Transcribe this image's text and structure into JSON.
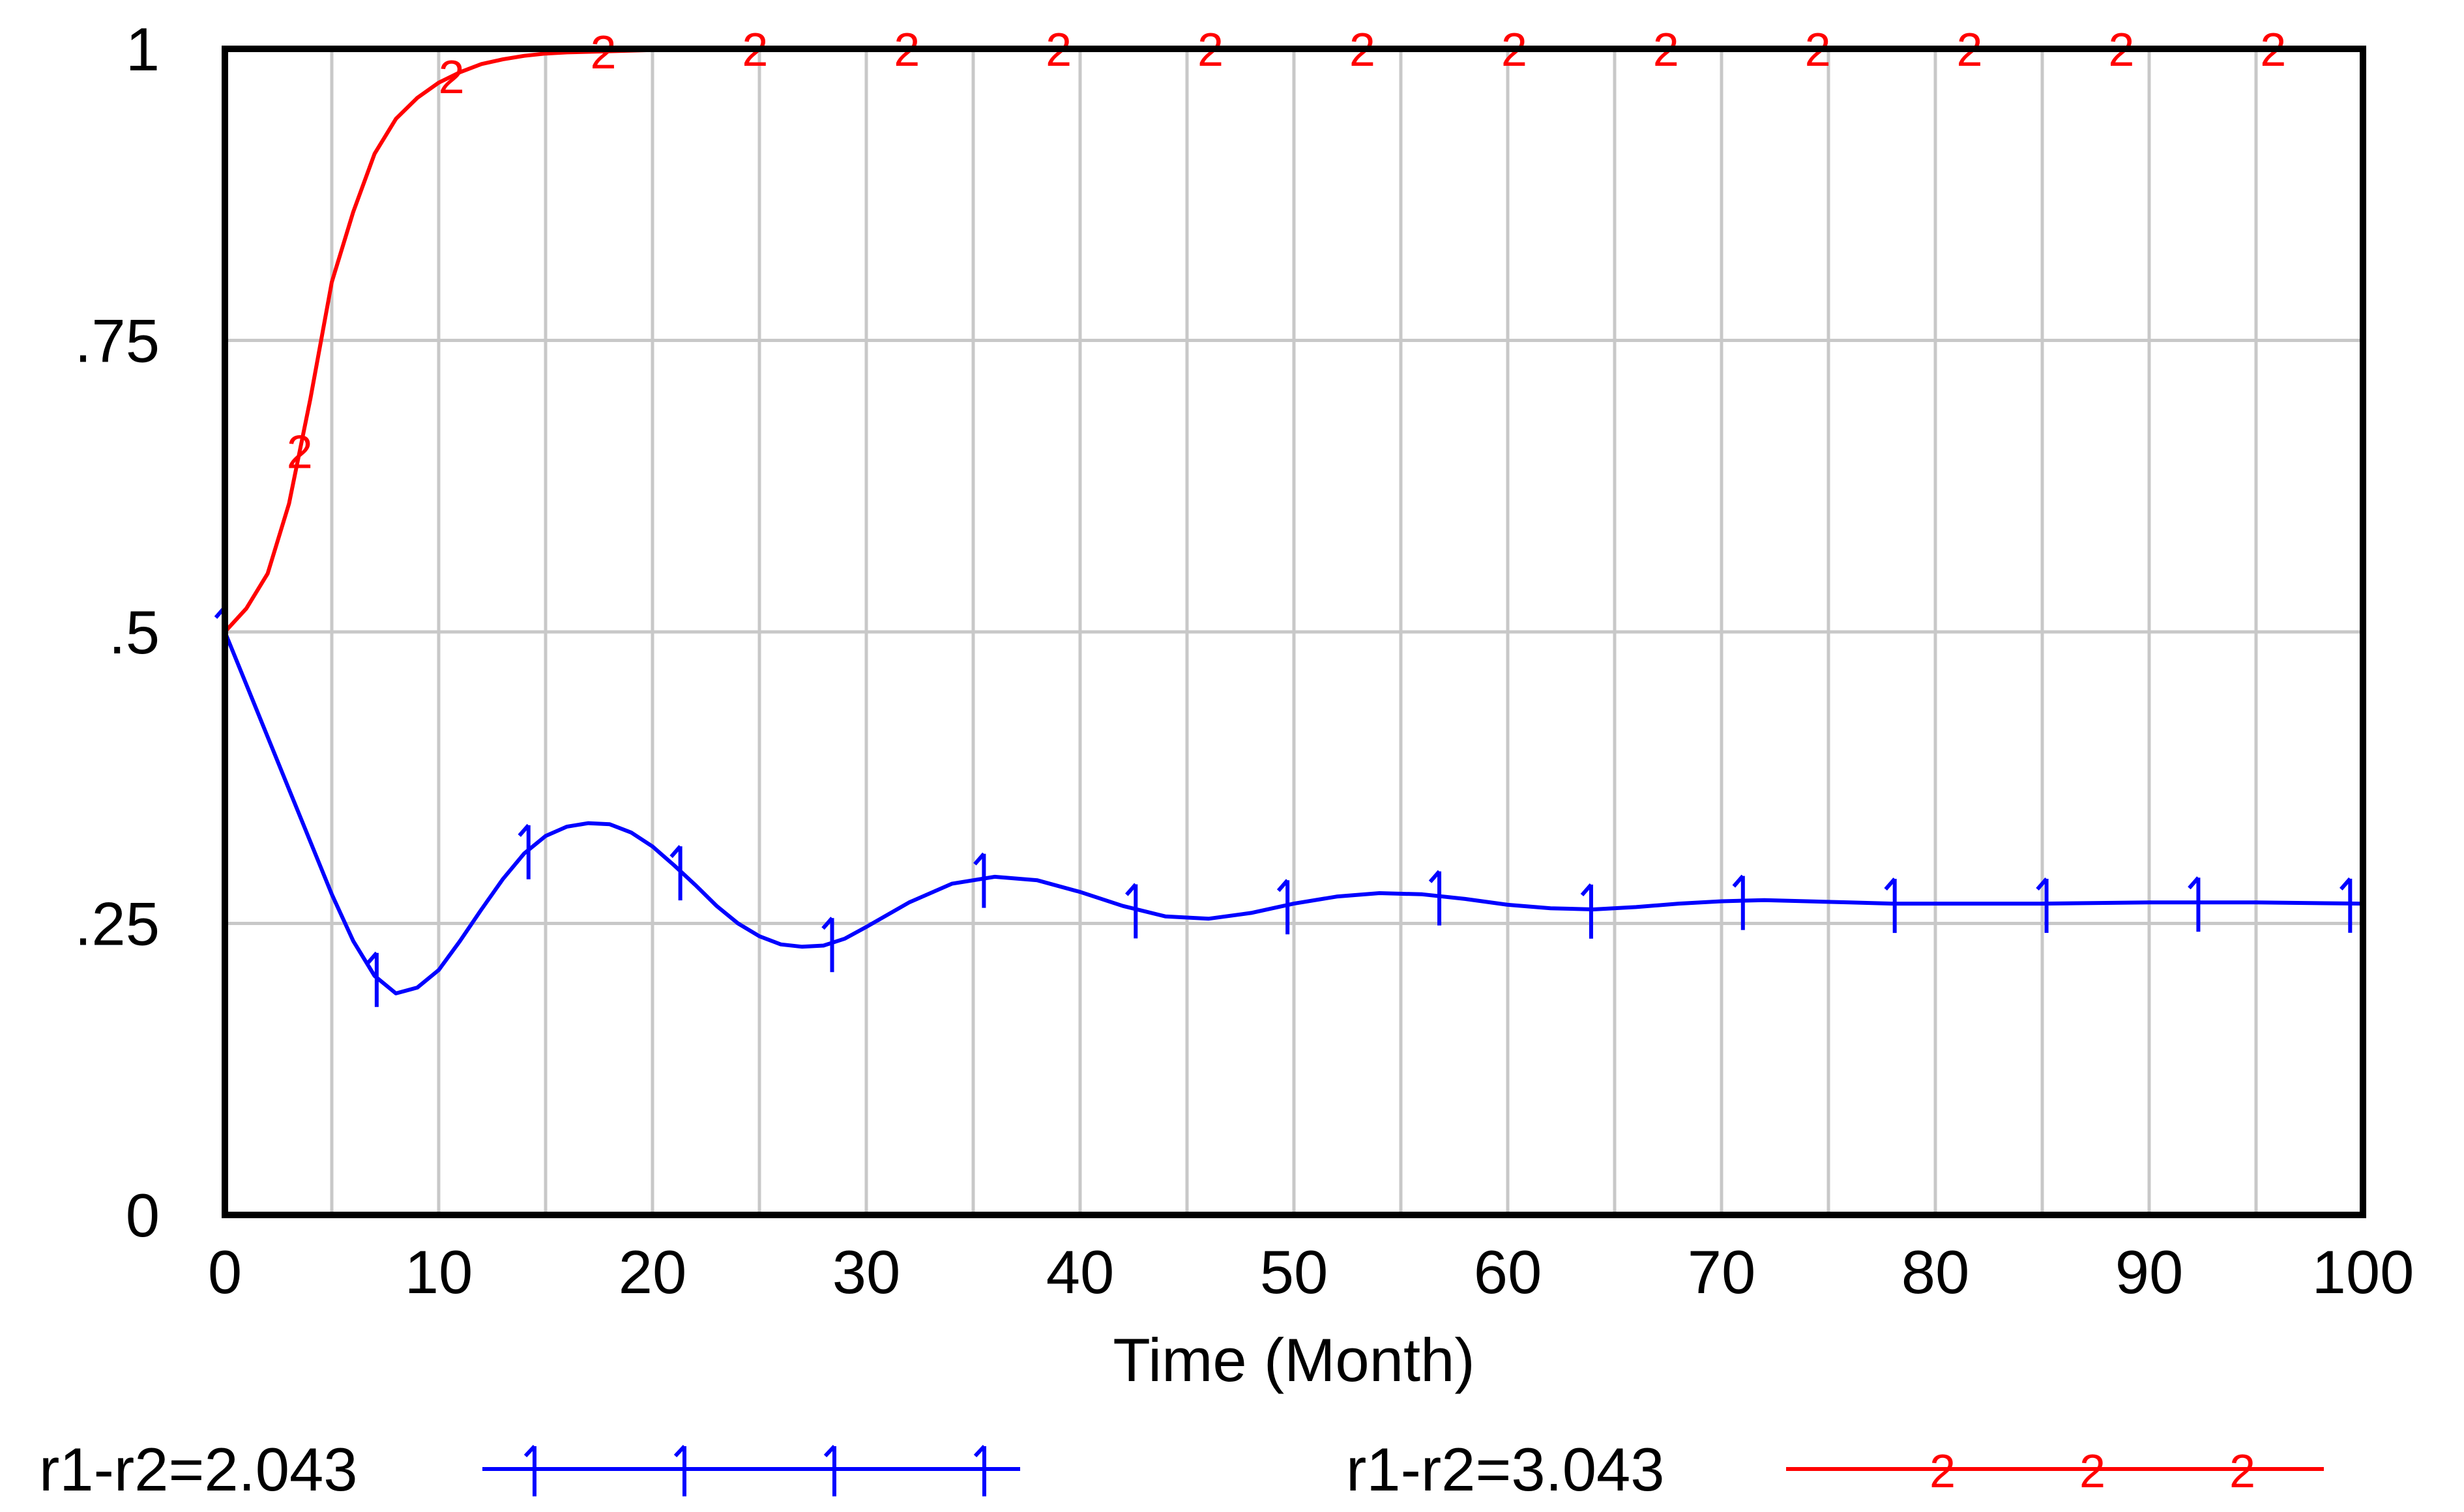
{
  "chart_data": {
    "type": "line",
    "title": "",
    "xlabel": "Time (Month)",
    "ylabel": "",
    "xlim": [
      0,
      100
    ],
    "ylim": [
      0,
      1
    ],
    "xticks": [
      "0",
      "10",
      "20",
      "30",
      "40",
      "50",
      "60",
      "70",
      "80",
      "90",
      "100"
    ],
    "yticks": [
      "0",
      ".25",
      ".5",
      ".75",
      "1"
    ],
    "grid": true,
    "legend_position": "bottom",
    "series": [
      {
        "name": "r1-r2=2.043",
        "marker": "1",
        "color": "#0000ff",
        "x": [
          0,
          1,
          2,
          3,
          4,
          5,
          6,
          7,
          8,
          9,
          10,
          11,
          12,
          13,
          14,
          15,
          16,
          17,
          18,
          19,
          20,
          21,
          22,
          23,
          24,
          25,
          26,
          27,
          28,
          29,
          30,
          32,
          34,
          36,
          38,
          40,
          42,
          44,
          46,
          48,
          50,
          52,
          54,
          56,
          58,
          60,
          62,
          64,
          66,
          68,
          70,
          72,
          74,
          76,
          78,
          80,
          85,
          90,
          95,
          100
        ],
        "y": [
          0.5,
          0.455,
          0.41,
          0.365,
          0.32,
          0.275,
          0.235,
          0.205,
          0.19,
          0.195,
          0.21,
          0.235,
          0.262,
          0.288,
          0.31,
          0.325,
          0.333,
          0.336,
          0.335,
          0.328,
          0.316,
          0.3,
          0.283,
          0.265,
          0.25,
          0.239,
          0.232,
          0.23,
          0.231,
          0.237,
          0.247,
          0.268,
          0.284,
          0.29,
          0.287,
          0.277,
          0.265,
          0.256,
          0.254,
          0.259,
          0.267,
          0.273,
          0.276,
          0.275,
          0.271,
          0.266,
          0.263,
          0.262,
          0.264,
          0.267,
          0.269,
          0.27,
          0.269,
          0.268,
          0.267,
          0.267,
          0.267,
          0.268,
          0.268,
          0.267
        ]
      },
      {
        "name": "r1-r2=3.043",
        "marker": "2",
        "color": "#ff0000",
        "x": [
          0,
          1,
          2,
          3,
          4,
          5,
          6,
          7,
          8,
          9,
          10,
          11,
          12,
          13,
          14,
          15,
          16,
          18,
          20,
          22,
          24,
          26,
          30,
          40,
          50,
          60,
          70,
          80,
          90,
          100
        ],
        "y": [
          0.5,
          0.52,
          0.55,
          0.61,
          0.7,
          0.8,
          0.86,
          0.91,
          0.94,
          0.958,
          0.971,
          0.98,
          0.987,
          0.991,
          0.994,
          0.996,
          0.997,
          0.998,
          0.999,
          0.9995,
          1.0,
          1.0,
          1.0,
          1.0,
          1.0,
          1.0,
          1.0,
          1.0,
          1.0,
          1.0
        ]
      }
    ]
  }
}
